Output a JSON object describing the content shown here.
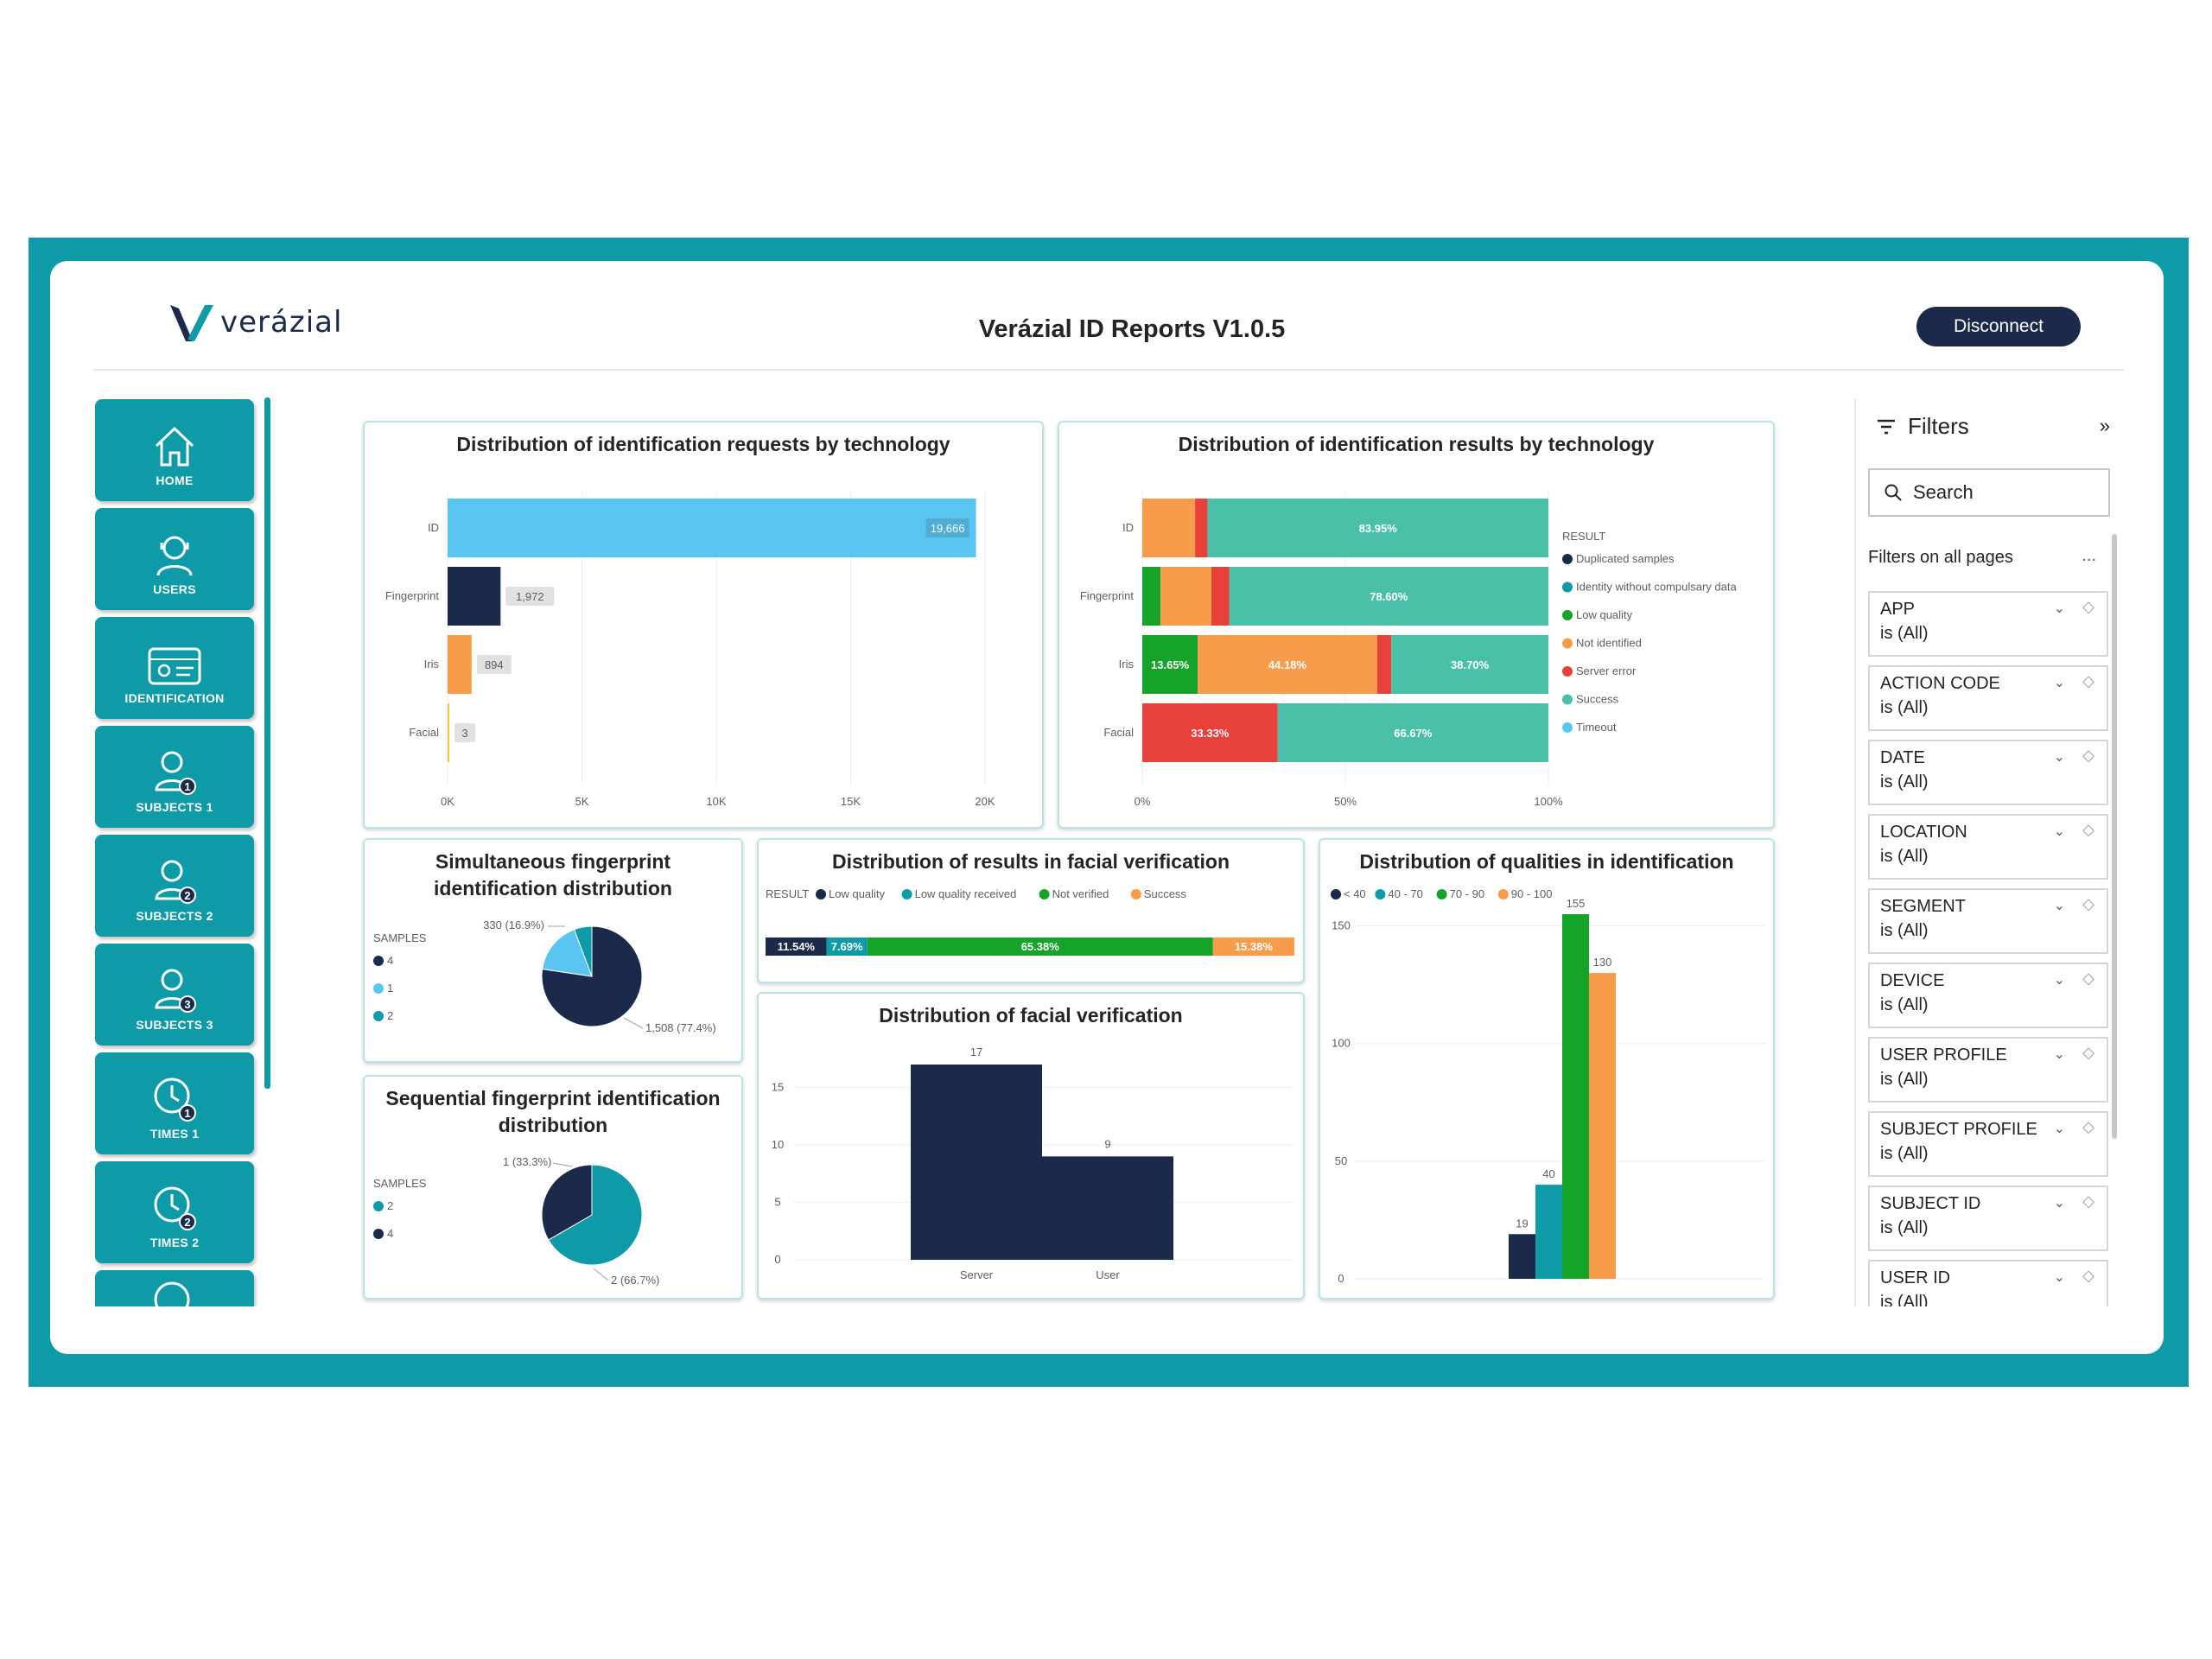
{
  "header": {
    "logo_text": "verázial",
    "title": "Verázial ID Reports V1.0.5",
    "disconnect_label": "Disconnect"
  },
  "nav": [
    {
      "label": "HOME",
      "icon": "home-icon"
    },
    {
      "label": "USERS",
      "icon": "user-icon"
    },
    {
      "label": "IDENTIFICATION",
      "icon": "id-card-icon"
    },
    {
      "label": "SUBJECTS 1",
      "icon": "subject-1-icon"
    },
    {
      "label": "SUBJECTS 2",
      "icon": "subject-2-icon"
    },
    {
      "label": "SUBJECTS 3",
      "icon": "subject-3-icon"
    },
    {
      "label": "TIMES 1",
      "icon": "clock-1-icon"
    },
    {
      "label": "TIMES 2",
      "icon": "clock-2-icon"
    }
  ],
  "filters": {
    "title": "Filters",
    "search_placeholder": "Search",
    "section_label": "Filters on all pages",
    "more": "...",
    "items": [
      {
        "name": "APP",
        "value": "is (All)"
      },
      {
        "name": "ACTION CODE",
        "value": "is (All)"
      },
      {
        "name": "DATE",
        "value": "is (All)"
      },
      {
        "name": "LOCATION",
        "value": "is (All)"
      },
      {
        "name": "SEGMENT",
        "value": "is (All)"
      },
      {
        "name": "DEVICE",
        "value": "is (All)"
      },
      {
        "name": "USER PROFILE",
        "value": "is (All)"
      },
      {
        "name": "SUBJECT PROFILE",
        "value": "is (All)"
      },
      {
        "name": "SUBJECT ID",
        "value": "is (All)"
      },
      {
        "name": "USER ID",
        "value": "is (All)"
      }
    ]
  },
  "colors": {
    "teal": "#0e9aa7",
    "navy": "#1b2a4a",
    "lightblue": "#5bc5f2",
    "orange": "#f79c4a",
    "red": "#e8403a",
    "green": "#15a32a",
    "mint": "#4bc0a8",
    "darkblue": "#1b2a4a"
  },
  "chart_data": [
    {
      "id": "requests",
      "type": "bar",
      "title": "Distribution of identification requests by technology",
      "orientation": "horizontal",
      "categories": [
        "ID",
        "Fingerprint",
        "Iris",
        "Facial"
      ],
      "values": [
        19666,
        1972,
        894,
        3
      ],
      "value_labels": [
        "19,666",
        "1,972",
        "894",
        "3"
      ],
      "bar_colors": [
        "#5bc5f2",
        "#1b2a4a",
        "#f79c4a",
        "#f5c542"
      ],
      "xlim": [
        0,
        20000
      ],
      "ticks": [
        "0K",
        "5K",
        "10K",
        "15K",
        "20K"
      ],
      "grid": true
    },
    {
      "id": "results",
      "type": "bar",
      "title": "Distribution of identification results by technology",
      "orientation": "horizontal-stacked-100",
      "categories": [
        "ID",
        "Fingerprint",
        "Iris",
        "Facial"
      ],
      "legend_title": "RESULT",
      "legend": [
        {
          "name": "Duplicated samples",
          "color": "#1b2a4a"
        },
        {
          "name": "Identity without compulsary data",
          "color": "#0e9aa7"
        },
        {
          "name": "Low quality",
          "color": "#15a32a"
        },
        {
          "name": "Not identified",
          "color": "#f79c4a"
        },
        {
          "name": "Server error",
          "color": "#e8403a"
        },
        {
          "name": "Success",
          "color": "#4bc0a8"
        },
        {
          "name": "Timeout",
          "color": "#5bc5f2"
        }
      ],
      "rows": [
        [
          {
            "color": "#f79c4a",
            "value": 13.0
          },
          {
            "color": "#e8403a",
            "value": 3.05
          },
          {
            "color": "#4bc0a8",
            "value": 83.95,
            "label": "83.95%"
          }
        ],
        [
          {
            "color": "#15a32a",
            "value": 4.5
          },
          {
            "color": "#f79c4a",
            "value": 12.5
          },
          {
            "color": "#e8403a",
            "value": 4.4
          },
          {
            "color": "#4bc0a8",
            "value": 78.6,
            "label": "78.60%"
          }
        ],
        [
          {
            "color": "#15a32a",
            "value": 13.65,
            "label": "13.65%"
          },
          {
            "color": "#f79c4a",
            "value": 44.18,
            "label": "44.18%"
          },
          {
            "color": "#e8403a",
            "value": 3.47
          },
          {
            "color": "#4bc0a8",
            "value": 38.7,
            "label": "38.70%"
          }
        ],
        [
          {
            "color": "#e8403a",
            "value": 33.33,
            "label": "33.33%"
          },
          {
            "color": "#4bc0a8",
            "value": 66.67,
            "label": "66.67%"
          }
        ]
      ],
      "ticks": [
        "0%",
        "50%",
        "100%"
      ]
    },
    {
      "id": "sim_fp",
      "type": "pie",
      "title": "Simultaneous fingerprint identification distribution",
      "legend_title": "SAMPLES",
      "legend": [
        {
          "name": "4",
          "color": "#1b2a4a"
        },
        {
          "name": "1",
          "color": "#5bc5f2"
        },
        {
          "name": "2",
          "color": "#0e9aa7"
        }
      ],
      "slices": [
        {
          "name": "4",
          "value": 1508,
          "pct": 77.4,
          "color": "#1b2a4a"
        },
        {
          "name": "1",
          "value": 330,
          "pct": 16.9,
          "color": "#5bc5f2"
        },
        {
          "name": "2",
          "value": 112,
          "pct": 5.7,
          "color": "#0e9aa7"
        }
      ],
      "labels": [
        "330 (16.9%)",
        "1,508 (77.4%)"
      ]
    },
    {
      "id": "seq_fp",
      "type": "pie",
      "title": "Sequential fingerprint identification distribution",
      "legend_title": "SAMPLES",
      "legend": [
        {
          "name": "2",
          "color": "#0e9aa7"
        },
        {
          "name": "4",
          "color": "#1b2a4a"
        }
      ],
      "slices": [
        {
          "name": "2",
          "value": 2,
          "pct": 66.7,
          "color": "#0e9aa7"
        },
        {
          "name": "4",
          "value": 1,
          "pct": 33.3,
          "color": "#1b2a4a"
        }
      ],
      "labels": [
        "1 (33.3%)",
        "2 (66.7%)"
      ]
    },
    {
      "id": "facial_results",
      "type": "bar",
      "title": "Distribution of results in facial verification",
      "orientation": "horizontal-stacked-100",
      "legend_title": "RESULT",
      "legend": [
        {
          "name": "Low quality",
          "color": "#1b2a4a"
        },
        {
          "name": "Low quality received",
          "color": "#0e9aa7"
        },
        {
          "name": "Not verified",
          "color": "#15a32a"
        },
        {
          "name": "Success",
          "color": "#f79c4a"
        }
      ],
      "segments": [
        {
          "color": "#1b2a4a",
          "value": 11.54,
          "label": "11.54%"
        },
        {
          "color": "#0e9aa7",
          "value": 7.69,
          "label": "7.69%"
        },
        {
          "color": "#15a32a",
          "value": 65.38,
          "label": "65.38%"
        },
        {
          "color": "#f79c4a",
          "value": 15.38,
          "label": "15.38%"
        }
      ]
    },
    {
      "id": "facial_verif",
      "type": "bar",
      "title": "Distribution of facial verification",
      "categories": [
        "Server",
        "User"
      ],
      "values": [
        17,
        9
      ],
      "ylim": [
        0,
        17
      ],
      "ticks": [
        "0",
        "5",
        "10",
        "15"
      ],
      "color": "#1b2a4a"
    },
    {
      "id": "qualities",
      "type": "bar",
      "title": "Distribution of qualities in identification",
      "legend": [
        {
          "name": "< 40",
          "color": "#1b2a4a"
        },
        {
          "name": "40 - 70",
          "color": "#0e9aa7"
        },
        {
          "name": "70 - 90",
          "color": "#15a32a"
        },
        {
          "name": "90 - 100",
          "color": "#f79c4a"
        }
      ],
      "values": [
        19,
        40,
        155,
        130
      ],
      "ylim": [
        0,
        155
      ],
      "ticks": [
        "0",
        "50",
        "100",
        "150"
      ]
    }
  ]
}
